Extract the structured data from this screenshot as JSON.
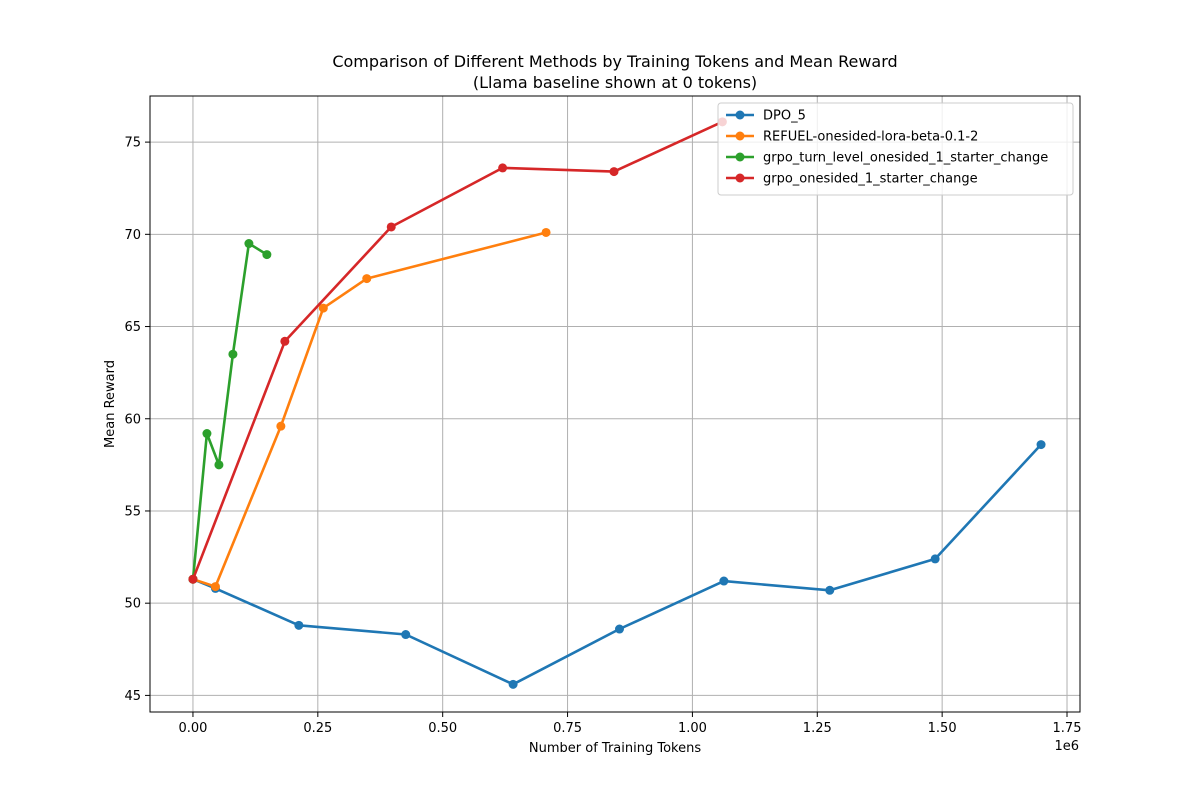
{
  "chart_data": {
    "type": "line",
    "title": "Comparison of Different Methods by Training Tokens and Mean Reward",
    "subtitle": "(Llama baseline shown at 0 tokens)",
    "xlabel": "Number of Training Tokens",
    "ylabel": "Mean Reward",
    "x_offset_label": "1e6",
    "xlim": [
      -0.086,
      1.776
    ],
    "ylim": [
      44.1,
      77.5
    ],
    "x_ticks": [
      0.0,
      0.25,
      0.5,
      0.75,
      1.0,
      1.25,
      1.5,
      1.75
    ],
    "x_tick_labels": [
      "0.00",
      "0.25",
      "0.50",
      "0.75",
      "1.00",
      "1.25",
      "1.50",
      "1.75"
    ],
    "y_ticks": [
      45,
      50,
      55,
      60,
      65,
      70,
      75
    ],
    "y_tick_labels": [
      "45",
      "50",
      "55",
      "60",
      "65",
      "70",
      "75"
    ],
    "grid": true,
    "legend_position": "top-right",
    "series": [
      {
        "name": "DPO_5",
        "color": "#1f77b4",
        "x": [
          0.0,
          0.045,
          0.212,
          0.426,
          0.641,
          0.854,
          1.063,
          1.275,
          1.486,
          1.698
        ],
        "y": [
          51.3,
          50.8,
          48.8,
          48.3,
          45.6,
          48.6,
          51.2,
          50.7,
          52.4,
          58.6
        ]
      },
      {
        "name": "REFUEL-onesided-lora-beta-0.1-2",
        "color": "#ff7f0e",
        "x": [
          0.0,
          0.045,
          0.176,
          0.261,
          0.348,
          0.707
        ],
        "y": [
          51.3,
          50.9,
          59.6,
          66.0,
          67.6,
          70.1
        ]
      },
      {
        "name": "grpo_turn_level_onesided_1_starter_change",
        "color": "#2ca02c",
        "x": [
          0.0,
          0.028,
          0.052,
          0.08,
          0.112,
          0.148
        ],
        "y": [
          51.3,
          59.2,
          57.5,
          63.5,
          69.5,
          68.9
        ]
      },
      {
        "name": "grpo_onesided_1_starter_change",
        "color": "#d62728",
        "x": [
          0.0,
          0.184,
          0.397,
          0.62,
          0.843,
          1.06
        ],
        "y": [
          51.3,
          64.2,
          70.4,
          73.6,
          73.4,
          76.1
        ]
      }
    ]
  }
}
